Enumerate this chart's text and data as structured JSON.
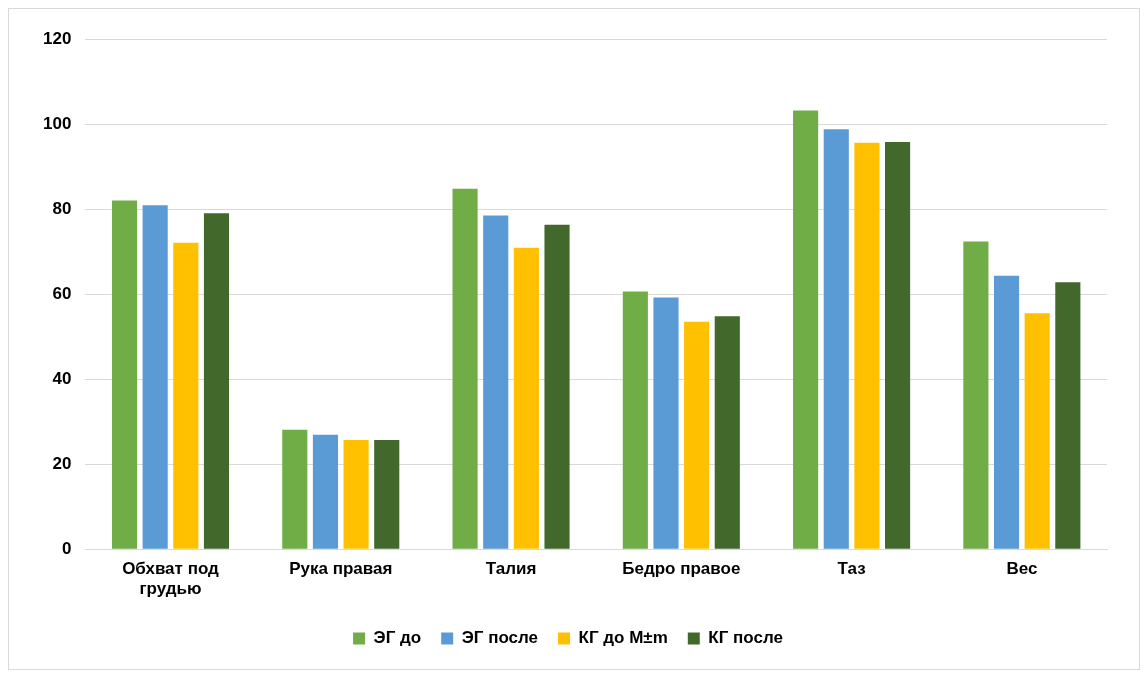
{
  "chart_data": {
    "type": "bar",
    "categories": [
      "Обхват под грудью",
      "Рука правая",
      "Талия",
      "Бедро правое",
      "Таз",
      "Вес"
    ],
    "series": [
      {
        "name": "ЭГ до",
        "color": "#70ad47",
        "values": [
          82,
          28.1,
          84.8,
          60.6,
          103.2,
          72.4
        ]
      },
      {
        "name": "ЭГ после",
        "color": "#5b9bd5",
        "values": [
          80.9,
          26.9,
          78.5,
          59.2,
          98.8,
          64.3
        ]
      },
      {
        "name": "КГ до М±m",
        "color": "#ffc000",
        "values": [
          72.1,
          25.7,
          70.9,
          53.5,
          95.6,
          55.5
        ]
      },
      {
        "name": "КГ после",
        "color": "#43682b",
        "values": [
          79,
          25.7,
          76.3,
          54.8,
          95.8,
          62.8
        ]
      }
    ],
    "ylim": [
      0,
      120
    ],
    "yticks": [
      0,
      20,
      40,
      60,
      80,
      100,
      120
    ],
    "grid": "y",
    "legend": "bottom"
  }
}
